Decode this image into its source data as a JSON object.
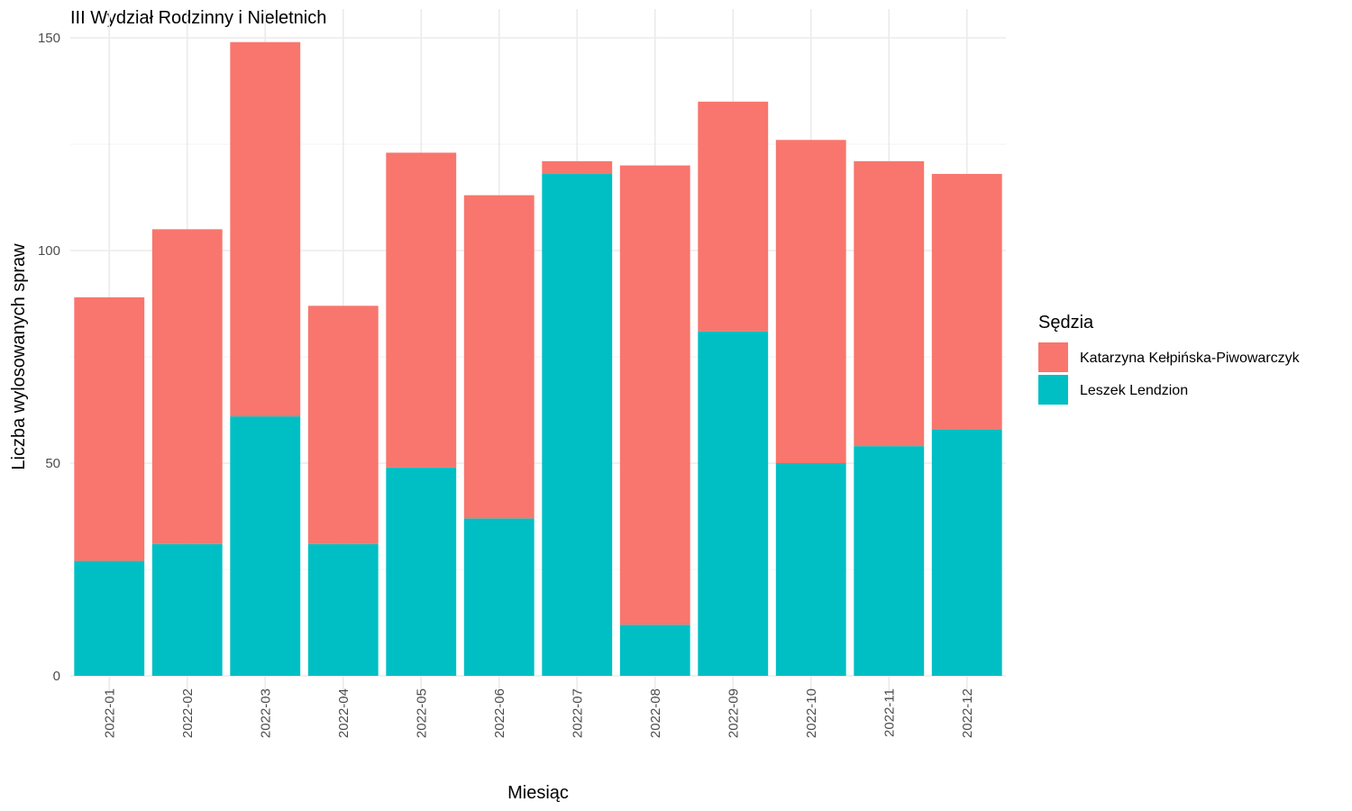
{
  "chart_data": {
    "type": "bar",
    "stacked": true,
    "title": "III Wydział Rodzinny i Nieletnich",
    "xlabel": "Miesiąc",
    "ylabel": "Liczba wylosowanych spraw",
    "ylim": [
      0,
      150
    ],
    "yticks": [
      0,
      50,
      100,
      150
    ],
    "grid": true,
    "legend": {
      "title": "Sędzia",
      "position": "right"
    },
    "categories": [
      "2022-01",
      "2022-02",
      "2022-03",
      "2022-04",
      "2022-05",
      "2022-06",
      "2022-07",
      "2022-08",
      "2022-09",
      "2022-10",
      "2022-11",
      "2022-12"
    ],
    "series": [
      {
        "name": "Katarzyna Kełpińska-Piwowarczyk",
        "color": "#F8766D",
        "values": [
          62,
          74,
          88,
          56,
          74,
          76,
          3,
          108,
          54,
          76,
          67,
          60
        ]
      },
      {
        "name": "Leszek Lendzion",
        "color": "#00BFC4",
        "values": [
          27,
          31,
          61,
          31,
          49,
          37,
          118,
          12,
          81,
          50,
          54,
          58
        ]
      }
    ]
  }
}
